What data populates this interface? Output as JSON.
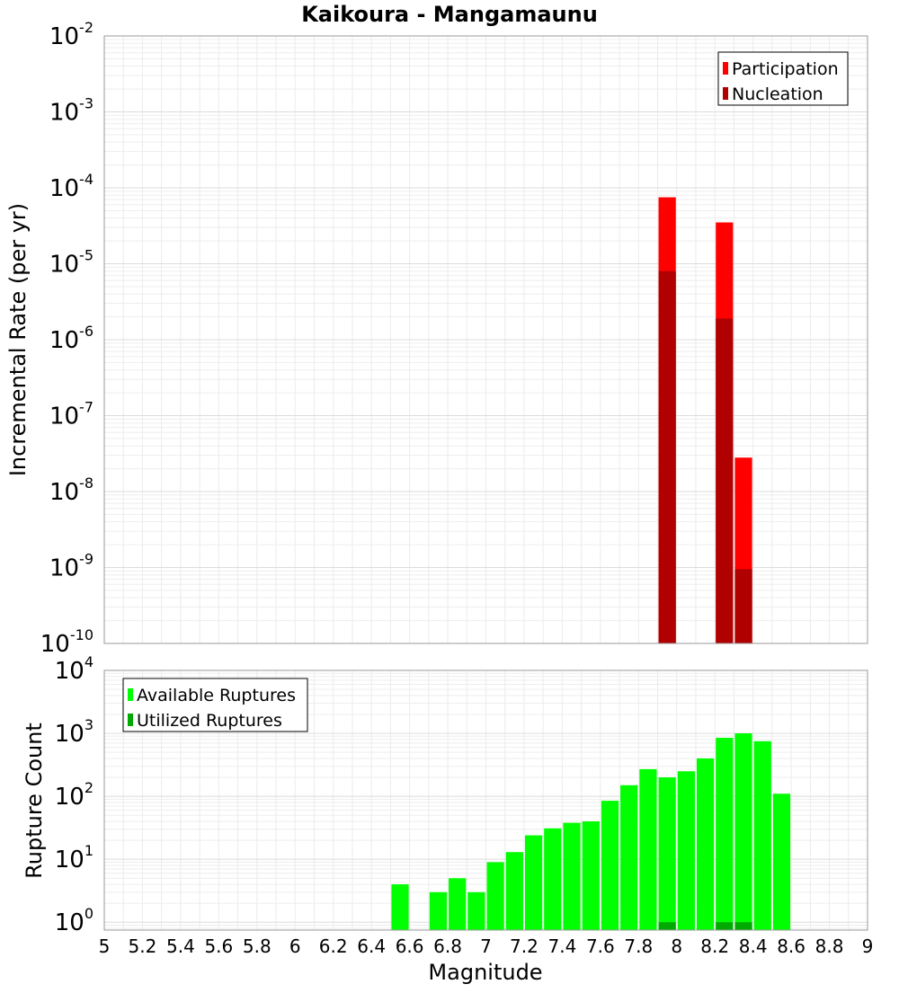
{
  "chart_data": [
    {
      "type": "bar",
      "title": "Kaikoura - Mangamaunu",
      "xlabel": "Magnitude",
      "ylabel": "Incremental Rate (per yr)",
      "y_scale": "log",
      "xlim": [
        5,
        9
      ],
      "ylim": [
        1e-10,
        0.01
      ],
      "grid": true,
      "legend_placement": "top-right",
      "bin_width": 0.1,
      "x_ticks": [
        "5",
        "5.2",
        "5.4",
        "5.6",
        "5.8",
        "6",
        "6.2",
        "6.4",
        "6.6",
        "6.8",
        "7",
        "7.2",
        "7.4",
        "7.6",
        "7.8",
        "8",
        "8.2",
        "8.4",
        "8.6",
        "8.8",
        "9"
      ],
      "y_ticks": [
        {
          "base": "10",
          "exp": "-10",
          "value": 1e-10
        },
        {
          "base": "10",
          "exp": "-9",
          "value": 1e-09
        },
        {
          "base": "10",
          "exp": "-8",
          "value": 1e-08
        },
        {
          "base": "10",
          "exp": "-7",
          "value": 1e-07
        },
        {
          "base": "10",
          "exp": "-6",
          "value": 1e-06
        },
        {
          "base": "10",
          "exp": "-5",
          "value": 1e-05
        },
        {
          "base": "10",
          "exp": "-4",
          "value": 0.0001
        },
        {
          "base": "10",
          "exp": "-3",
          "value": 0.001
        },
        {
          "base": "10",
          "exp": "-2",
          "value": 0.01
        }
      ],
      "series": [
        {
          "name": "Participation",
          "color": "#ff0000",
          "x": [
            7.95,
            8.25,
            8.35
          ],
          "values": [
            7.5e-05,
            3.5e-05,
            2.8e-08
          ]
        },
        {
          "name": "Nucleation",
          "color": "#b00000",
          "x": [
            7.95,
            8.25,
            8.35
          ],
          "values": [
            8e-06,
            1.9e-06,
            9.5e-10
          ]
        }
      ]
    },
    {
      "type": "bar",
      "title": "",
      "xlabel": "Magnitude",
      "ylabel": "Rupture Count",
      "y_scale": "log",
      "xlim": [
        5,
        9
      ],
      "ylim": [
        0.75,
        10000
      ],
      "grid": true,
      "legend_placement": "top-left",
      "bin_width": 0.1,
      "y_ticks": [
        {
          "base": "10",
          "exp": "0",
          "value": 1
        },
        {
          "base": "10",
          "exp": "1",
          "value": 10
        },
        {
          "base": "10",
          "exp": "2",
          "value": 100
        },
        {
          "base": "10",
          "exp": "3",
          "value": 1000
        },
        {
          "base": "10",
          "exp": "4",
          "value": 10000
        }
      ],
      "series": [
        {
          "name": "Available Ruptures",
          "color": "#00ff00",
          "x": [
            6.55,
            6.75,
            6.85,
            6.95,
            7.05,
            7.15,
            7.25,
            7.35,
            7.45,
            7.55,
            7.65,
            7.75,
            7.85,
            7.95,
            8.05,
            8.15,
            8.25,
            8.35,
            8.45,
            8.55
          ],
          "values": [
            4,
            3,
            5,
            3,
            9,
            13,
            24,
            31,
            38,
            40,
            85,
            150,
            270,
            200,
            250,
            400,
            850,
            1000,
            750,
            110
          ]
        },
        {
          "name": "Utilized Ruptures",
          "color": "#00aa00",
          "x": [
            7.95,
            8.25,
            8.35
          ],
          "values": [
            1,
            1,
            1
          ]
        }
      ]
    }
  ]
}
